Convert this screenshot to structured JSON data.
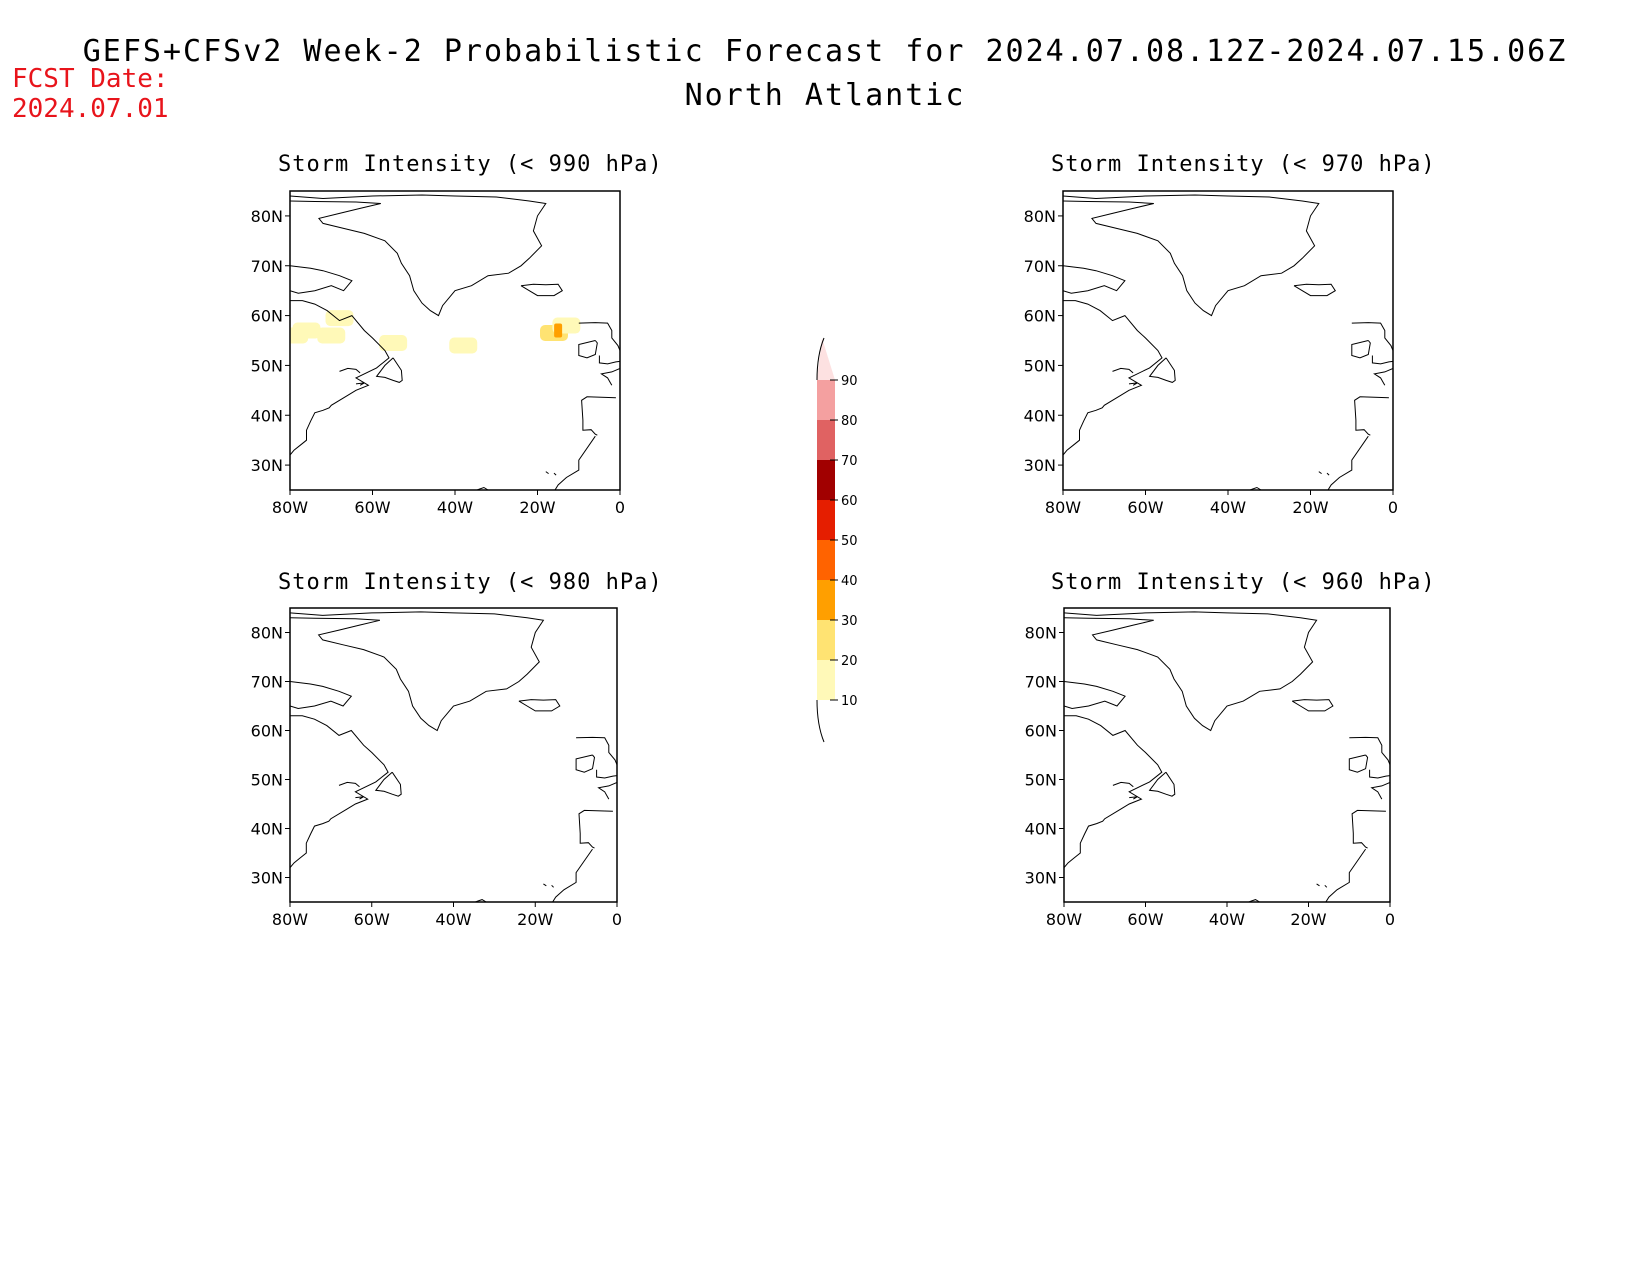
{
  "title": {
    "line1": "GEFS+CFSv2 Week-2 Probabilistic Forecast for 2024.07.08.12Z-2024.07.15.06Z",
    "line2": "North Atlantic"
  },
  "fcst_date": {
    "label": "FCST Date:",
    "value": "2024.07.01",
    "color": "#e8141b"
  },
  "axes": {
    "lat_ticks": [
      "80N",
      "70N",
      "60N",
      "50N",
      "40N",
      "30N"
    ],
    "lon_ticks": [
      "80W",
      "60W",
      "40W",
      "20W",
      "0"
    ],
    "lat_range": [
      25,
      85
    ],
    "lon_range": [
      -80,
      0
    ]
  },
  "panels": [
    {
      "id": "p990",
      "title": "Storm Intensity (< 990 hPa)",
      "areas": [
        {
          "lon": -79,
          "lat": 56,
          "prob": 10
        },
        {
          "lon": -76,
          "lat": 57,
          "prob": 15
        },
        {
          "lon": -70,
          "lat": 56,
          "prob": 12
        },
        {
          "lon": -68,
          "lat": 59.5,
          "prob": 12
        },
        {
          "lon": -55,
          "lat": 54.5,
          "prob": 10
        },
        {
          "lon": -38,
          "lat": 54,
          "prob": 15
        },
        {
          "lon": -16,
          "lat": 56.5,
          "prob": 20
        },
        {
          "lon": -13,
          "lat": 58,
          "prob": 18
        },
        {
          "lon": -15,
          "lat": 57,
          "prob": 35
        }
      ]
    },
    {
      "id": "p970",
      "title": "Storm Intensity (< 970 hPa)",
      "areas": []
    },
    {
      "id": "p980",
      "title": "Storm Intensity (< 980 hPa)",
      "areas": []
    },
    {
      "id": "p960",
      "title": "Storm Intensity (< 960 hPa)",
      "areas": []
    }
  ],
  "colorbar": {
    "levels": [
      "10",
      "20",
      "30",
      "40",
      "50",
      "60",
      "70",
      "80",
      "90"
    ],
    "colors": [
      "#fff9b8",
      "#ffe372",
      "#ff9f00",
      "#ff6300",
      "#e51e00",
      "#a10000",
      "#e06262",
      "#f4a0a0",
      "#fde1e1"
    ]
  },
  "colors": {
    "coast": "#000000"
  }
}
